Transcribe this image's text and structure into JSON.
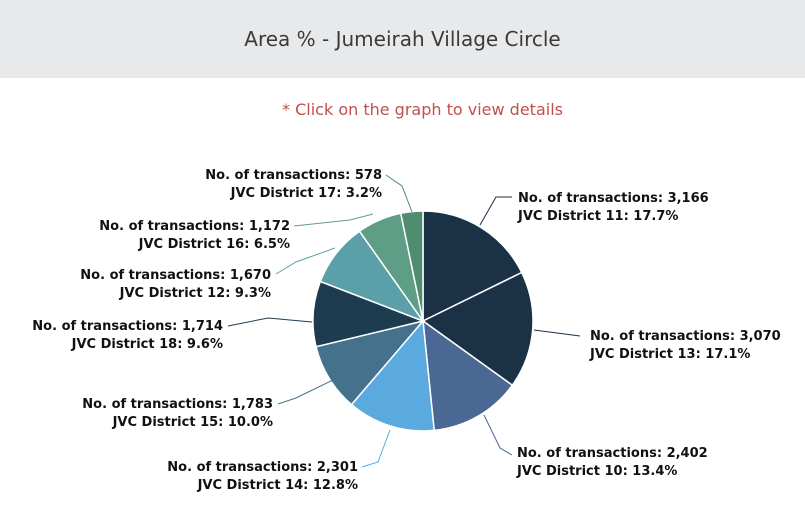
{
  "header": {
    "title": "Area % - Jumeirah Village Circle"
  },
  "hint": "* Click on the graph to view details",
  "chart_data": {
    "type": "pie",
    "title": "Area % - Jumeirah Village Circle",
    "metric_label": "No. of transactions",
    "slices": [
      {
        "name": "JVC District 11",
        "value": 3166,
        "value_label": "3,166",
        "percent": "17.7%",
        "color": "#1b3146"
      },
      {
        "name": "JVC District 13",
        "value": 3070,
        "value_label": "3,070",
        "percent": "17.1%",
        "color": "#1b3146"
      },
      {
        "name": "JVC District 10",
        "value": 2402,
        "value_label": "2,402",
        "percent": "13.4%",
        "color": "#4b6794"
      },
      {
        "name": "JVC District 14",
        "value": 2301,
        "value_label": "2,301",
        "percent": "12.8%",
        "color": "#5aa9df"
      },
      {
        "name": "JVC District 15",
        "value": 1783,
        "value_label": "1,783",
        "percent": "10.0%",
        "color": "#44718c"
      },
      {
        "name": "JVC District 18",
        "value": 1714,
        "value_label": "1,714",
        "percent": "9.6%",
        "color": "#1e3c50"
      },
      {
        "name": "JVC District 12",
        "value": 1670,
        "value_label": "1,670",
        "percent": "9.3%",
        "color": "#5b9fa9"
      },
      {
        "name": "JVC District 16",
        "value": 1172,
        "value_label": "1,172",
        "percent": "6.5%",
        "color": "#5f9e86"
      },
      {
        "name": "JVC District 17",
        "value": 578,
        "value_label": "578",
        "percent": "3.2%",
        "color": "#4f8c70"
      }
    ]
  }
}
